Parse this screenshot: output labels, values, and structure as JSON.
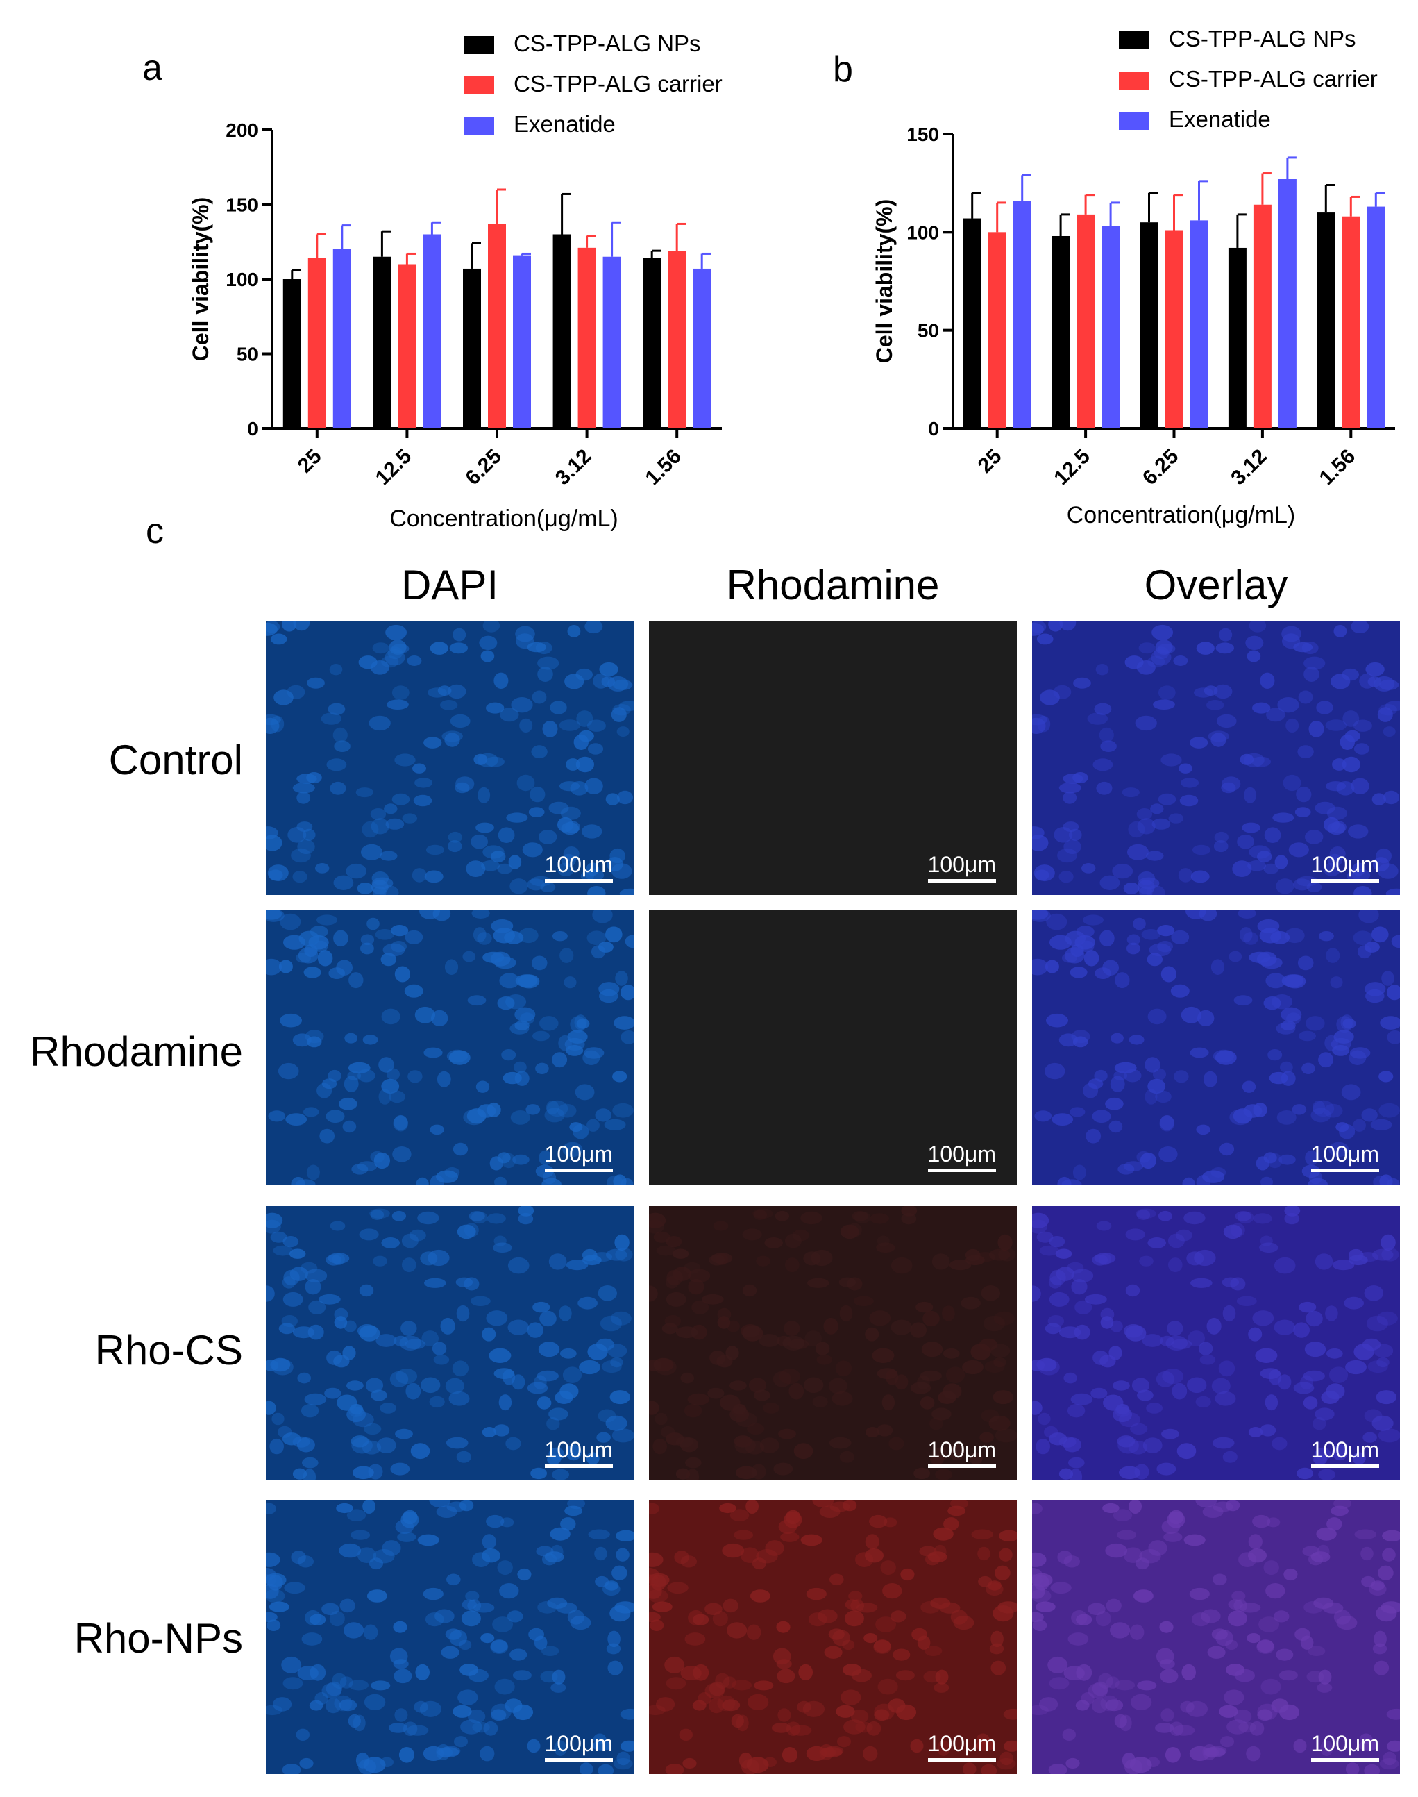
{
  "panels": {
    "a": "a",
    "b": "b",
    "c": "c"
  },
  "chart_data": [
    {
      "type": "bar",
      "categories": [
        "25",
        "12.5",
        "6.25",
        "3.12",
        "1.56"
      ],
      "series": [
        {
          "name": "CS-TPP-ALG NPs",
          "color": "#000000",
          "values": [
            100,
            115,
            107,
            130,
            114
          ],
          "errors": [
            6,
            17,
            17,
            27,
            5
          ]
        },
        {
          "name": "CS-TPP-ALG carrier",
          "color": "#ff3b3b",
          "values": [
            114,
            110,
            137,
            121,
            119
          ],
          "errors": [
            16,
            7,
            23,
            8,
            18
          ]
        },
        {
          "name": "Exenatide",
          "color": "#5555ff",
          "values": [
            120,
            130,
            116,
            115,
            107
          ],
          "errors": [
            16,
            8,
            1,
            23,
            10
          ]
        }
      ],
      "xlabel": "Concentration(μg/mL)",
      "ylabel": "Cell viability(%)",
      "ylim": [
        0,
        200
      ],
      "yticks": [
        0,
        50,
        100,
        150,
        200
      ],
      "legend": "top"
    },
    {
      "type": "bar",
      "categories": [
        "25",
        "12.5",
        "6.25",
        "3.12",
        "1.56"
      ],
      "series": [
        {
          "name": "CS-TPP-ALG NPs",
          "color": "#000000",
          "values": [
            107,
            98,
            105,
            92,
            110
          ],
          "errors": [
            13,
            11,
            15,
            17,
            14
          ]
        },
        {
          "name": "CS-TPP-ALG carrier",
          "color": "#ff3b3b",
          "values": [
            100,
            109,
            101,
            114,
            108
          ],
          "errors": [
            15,
            10,
            18,
            16,
            10
          ]
        },
        {
          "name": "Exenatide",
          "color": "#5555ff",
          "values": [
            116,
            103,
            106,
            127,
            113
          ],
          "errors": [
            13,
            12,
            20,
            11,
            7
          ]
        }
      ],
      "xlabel": "Concentration(μg/mL)",
      "ylabel": "Cell viability(%)",
      "ylim": [
        0,
        150
      ],
      "yticks": [
        0,
        50,
        100,
        150
      ],
      "legend": "top"
    }
  ],
  "micrographs": {
    "columns": [
      "DAPI",
      "Rhodamine",
      "Overlay"
    ],
    "rows": [
      "Control",
      "Rhodamine",
      "Rho-CS",
      "Rho-NPs"
    ],
    "scale_bar": "100μm"
  }
}
